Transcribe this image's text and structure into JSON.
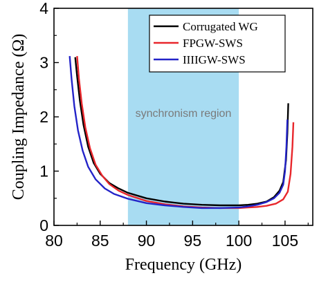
{
  "chart_data": {
    "type": "line",
    "title": "",
    "xlabel": "Frequency (GHz)",
    "ylabel": "Coupling Impedance (Ω)",
    "xlim": [
      80,
      108
    ],
    "ylim": [
      0,
      4
    ],
    "xticks": [
      "80",
      "85",
      "90",
      "95",
      "100",
      "105"
    ],
    "xtick_values": [
      80,
      85,
      90,
      95,
      100,
      105
    ],
    "yticks": [
      "0",
      "1",
      "2",
      "3",
      "4"
    ],
    "ytick_values": [
      0,
      1,
      2,
      3,
      4
    ],
    "grid": false,
    "legend_position": "top-right",
    "band": {
      "label": "synchronism region",
      "x_start": 88,
      "x_end": 100,
      "color": "#a8dcf2",
      "label_color": "#7a7a7a"
    },
    "series": [
      {
        "name": "Corrugated WG",
        "color": "#000000",
        "points": [
          [
            82.3,
            3.1
          ],
          [
            82.5,
            2.75
          ],
          [
            82.8,
            2.3
          ],
          [
            83.2,
            1.85
          ],
          [
            83.7,
            1.45
          ],
          [
            84.3,
            1.15
          ],
          [
            85.0,
            0.95
          ],
          [
            86.0,
            0.78
          ],
          [
            87.0,
            0.68
          ],
          [
            88.0,
            0.6
          ],
          [
            90.0,
            0.5
          ],
          [
            92.0,
            0.44
          ],
          [
            94.0,
            0.4
          ],
          [
            96.0,
            0.38
          ],
          [
            98.0,
            0.37
          ],
          [
            100.0,
            0.37
          ],
          [
            101.0,
            0.38
          ],
          [
            102.0,
            0.4
          ],
          [
            103.0,
            0.44
          ],
          [
            103.8,
            0.52
          ],
          [
            104.4,
            0.64
          ],
          [
            104.8,
            0.8
          ],
          [
            105.1,
            1.2
          ],
          [
            105.25,
            1.7
          ],
          [
            105.35,
            2.25
          ]
        ]
      },
      {
        "name": "FPGW-SWS",
        "color": "#e8262b",
        "points": [
          [
            82.5,
            3.12
          ],
          [
            82.7,
            2.7
          ],
          [
            83.0,
            2.25
          ],
          [
            83.4,
            1.8
          ],
          [
            83.9,
            1.42
          ],
          [
            84.5,
            1.12
          ],
          [
            85.2,
            0.92
          ],
          [
            86.0,
            0.76
          ],
          [
            87.0,
            0.64
          ],
          [
            88.0,
            0.56
          ],
          [
            90.0,
            0.45
          ],
          [
            92.0,
            0.39
          ],
          [
            94.0,
            0.35
          ],
          [
            96.0,
            0.33
          ],
          [
            98.0,
            0.32
          ],
          [
            100.0,
            0.32
          ],
          [
            101.0,
            0.33
          ],
          [
            102.0,
            0.34
          ],
          [
            103.0,
            0.36
          ],
          [
            104.0,
            0.4
          ],
          [
            104.8,
            0.48
          ],
          [
            105.3,
            0.62
          ],
          [
            105.6,
            0.95
          ],
          [
            105.8,
            1.45
          ],
          [
            105.9,
            1.9
          ]
        ]
      },
      {
        "name": "IIIIGW-SWS",
        "color": "#2323c8",
        "points": [
          [
            81.7,
            3.12
          ],
          [
            81.9,
            2.7
          ],
          [
            82.2,
            2.2
          ],
          [
            82.6,
            1.75
          ],
          [
            83.1,
            1.38
          ],
          [
            83.7,
            1.08
          ],
          [
            84.5,
            0.85
          ],
          [
            85.5,
            0.68
          ],
          [
            86.5,
            0.58
          ],
          [
            88.0,
            0.49
          ],
          [
            90.0,
            0.41
          ],
          [
            92.0,
            0.37
          ],
          [
            94.0,
            0.34
          ],
          [
            96.0,
            0.32
          ],
          [
            98.0,
            0.32
          ],
          [
            100.0,
            0.33
          ],
          [
            101.0,
            0.35
          ],
          [
            102.0,
            0.38
          ],
          [
            103.0,
            0.43
          ],
          [
            103.8,
            0.5
          ],
          [
            104.4,
            0.6
          ],
          [
            104.8,
            0.75
          ],
          [
            105.0,
            1.0
          ],
          [
            105.15,
            1.45
          ],
          [
            105.25,
            1.95
          ]
        ]
      }
    ]
  }
}
